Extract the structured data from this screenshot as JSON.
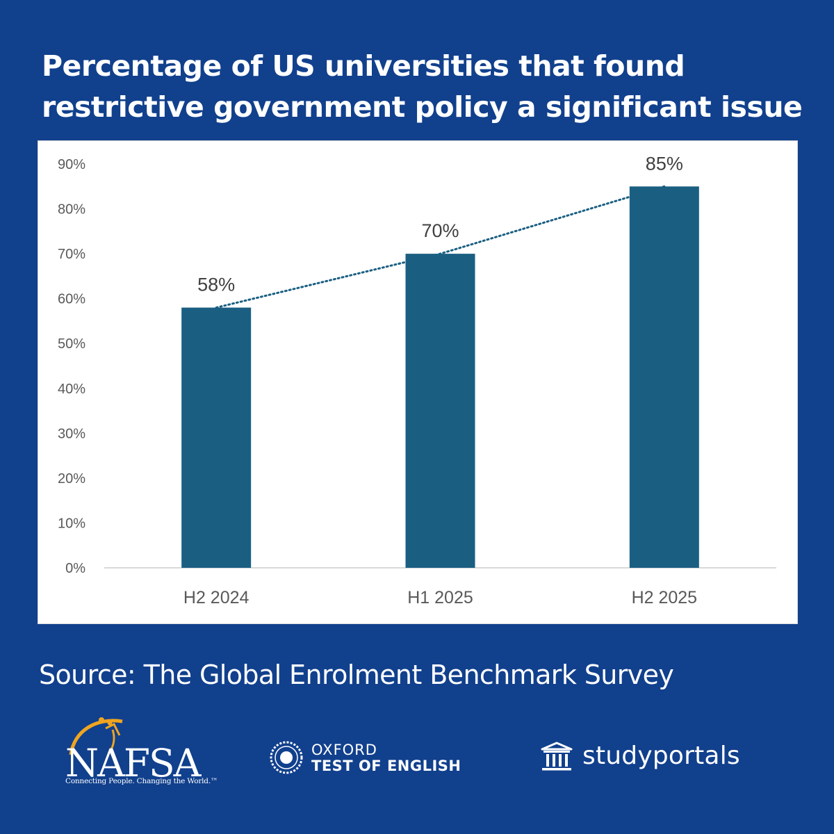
{
  "title_lines": [
    "Percentage of US universities that found",
    "restrictive government policy a significant issue"
  ],
  "source": "Source: The Global Enrolment Benchmark Survey",
  "logos": {
    "nafsa": {
      "word": "NAFSA",
      "tagline": "Connecting People. Changing the World.™"
    },
    "oxford": {
      "line1": "OXFORD",
      "line2": "TEST OF ENGLISH"
    },
    "studyportals": {
      "word": "studyportals"
    }
  },
  "colors": {
    "background": "#11408d",
    "bar": "#1a5f82",
    "trendline": "#1a5f82",
    "axis_text": "#595959",
    "label_text": "#404040"
  },
  "chart_data": {
    "type": "bar",
    "categories": [
      "H2 2024",
      "H1 2025",
      "H2 2025"
    ],
    "values": [
      58,
      70,
      85
    ],
    "data_labels": [
      "58%",
      "70%",
      "85%"
    ],
    "ylim": [
      0,
      90
    ],
    "yticks": [
      "0%",
      "10%",
      "20%",
      "30%",
      "40%",
      "50%",
      "60%",
      "70%",
      "80%",
      "90%"
    ],
    "trendline": "dotted line connecting bar tops",
    "grid": false,
    "legend": "none"
  }
}
